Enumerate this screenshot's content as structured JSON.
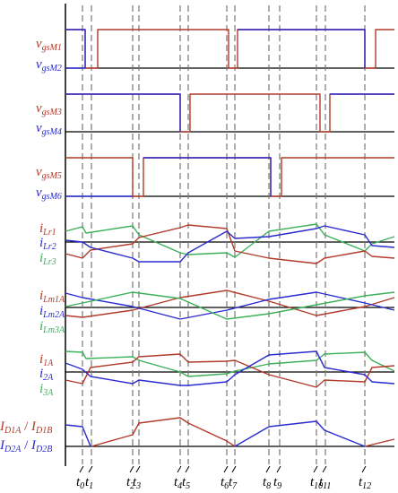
{
  "colors": {
    "red": "#b23a2a",
    "blue": "#2b2bd0",
    "green": "#3db05a",
    "axis": "#000000",
    "marker": "#777777"
  },
  "panels": [
    {
      "id": "gs12",
      "labels": [
        {
          "base": "v",
          "sub": "gsM1",
          "color": "red"
        },
        {
          "base": "v",
          "sub": "gsM2",
          "color": "blue"
        }
      ]
    },
    {
      "id": "gs34",
      "labels": [
        {
          "base": "v",
          "sub": "gsM3",
          "color": "red"
        },
        {
          "base": "v",
          "sub": "gsM4",
          "color": "blue"
        }
      ]
    },
    {
      "id": "gs56",
      "labels": [
        {
          "base": "v",
          "sub": "gsM5",
          "color": "red"
        },
        {
          "base": "v",
          "sub": "gsM6",
          "color": "blue"
        }
      ]
    },
    {
      "id": "ilr",
      "labels": [
        {
          "base": "i",
          "sub": "Lr1",
          "color": "red"
        },
        {
          "base": "i",
          "sub": "Lr2",
          "color": "blue"
        },
        {
          "base": "i",
          "sub": "Lr3",
          "color": "green"
        }
      ]
    },
    {
      "id": "ilm",
      "labels": [
        {
          "base": "i",
          "sub": "Lm1A",
          "color": "red"
        },
        {
          "base": "i",
          "sub": "Lm2A",
          "color": "blue"
        },
        {
          "base": "i",
          "sub": "Lm3A",
          "color": "green"
        }
      ]
    },
    {
      "id": "iA",
      "labels": [
        {
          "base": "i",
          "sub": "1A",
          "color": "red"
        },
        {
          "base": "i",
          "sub": "2A",
          "color": "blue"
        },
        {
          "base": "i",
          "sub": "3A",
          "color": "green"
        }
      ]
    },
    {
      "id": "id",
      "labels": [
        {
          "base": "I",
          "sub": "D1A",
          "base2": "I",
          "sub2": "D1B",
          "color": "red"
        },
        {
          "base": "I",
          "sub": "D2A",
          "base2": "I",
          "sub2": "D2B",
          "color": "blue"
        }
      ]
    }
  ],
  "time_labels": [
    {
      "base": "t",
      "sub": "0"
    },
    {
      "base": "t",
      "sub": "1"
    },
    {
      "base": "t",
      "sub": "2"
    },
    {
      "base": "t",
      "sub": "3"
    },
    {
      "base": "t",
      "sub": "4"
    },
    {
      "base": "t",
      "sub": "5"
    },
    {
      "base": "t",
      "sub": "6"
    },
    {
      "base": "t",
      "sub": "7"
    },
    {
      "base": "t",
      "sub": "8"
    },
    {
      "base": "t",
      "sub": "9"
    },
    {
      "base": "t",
      "sub": "10"
    },
    {
      "base": "t",
      "sub": "11"
    },
    {
      "base": "t",
      "sub": "12"
    }
  ]
}
